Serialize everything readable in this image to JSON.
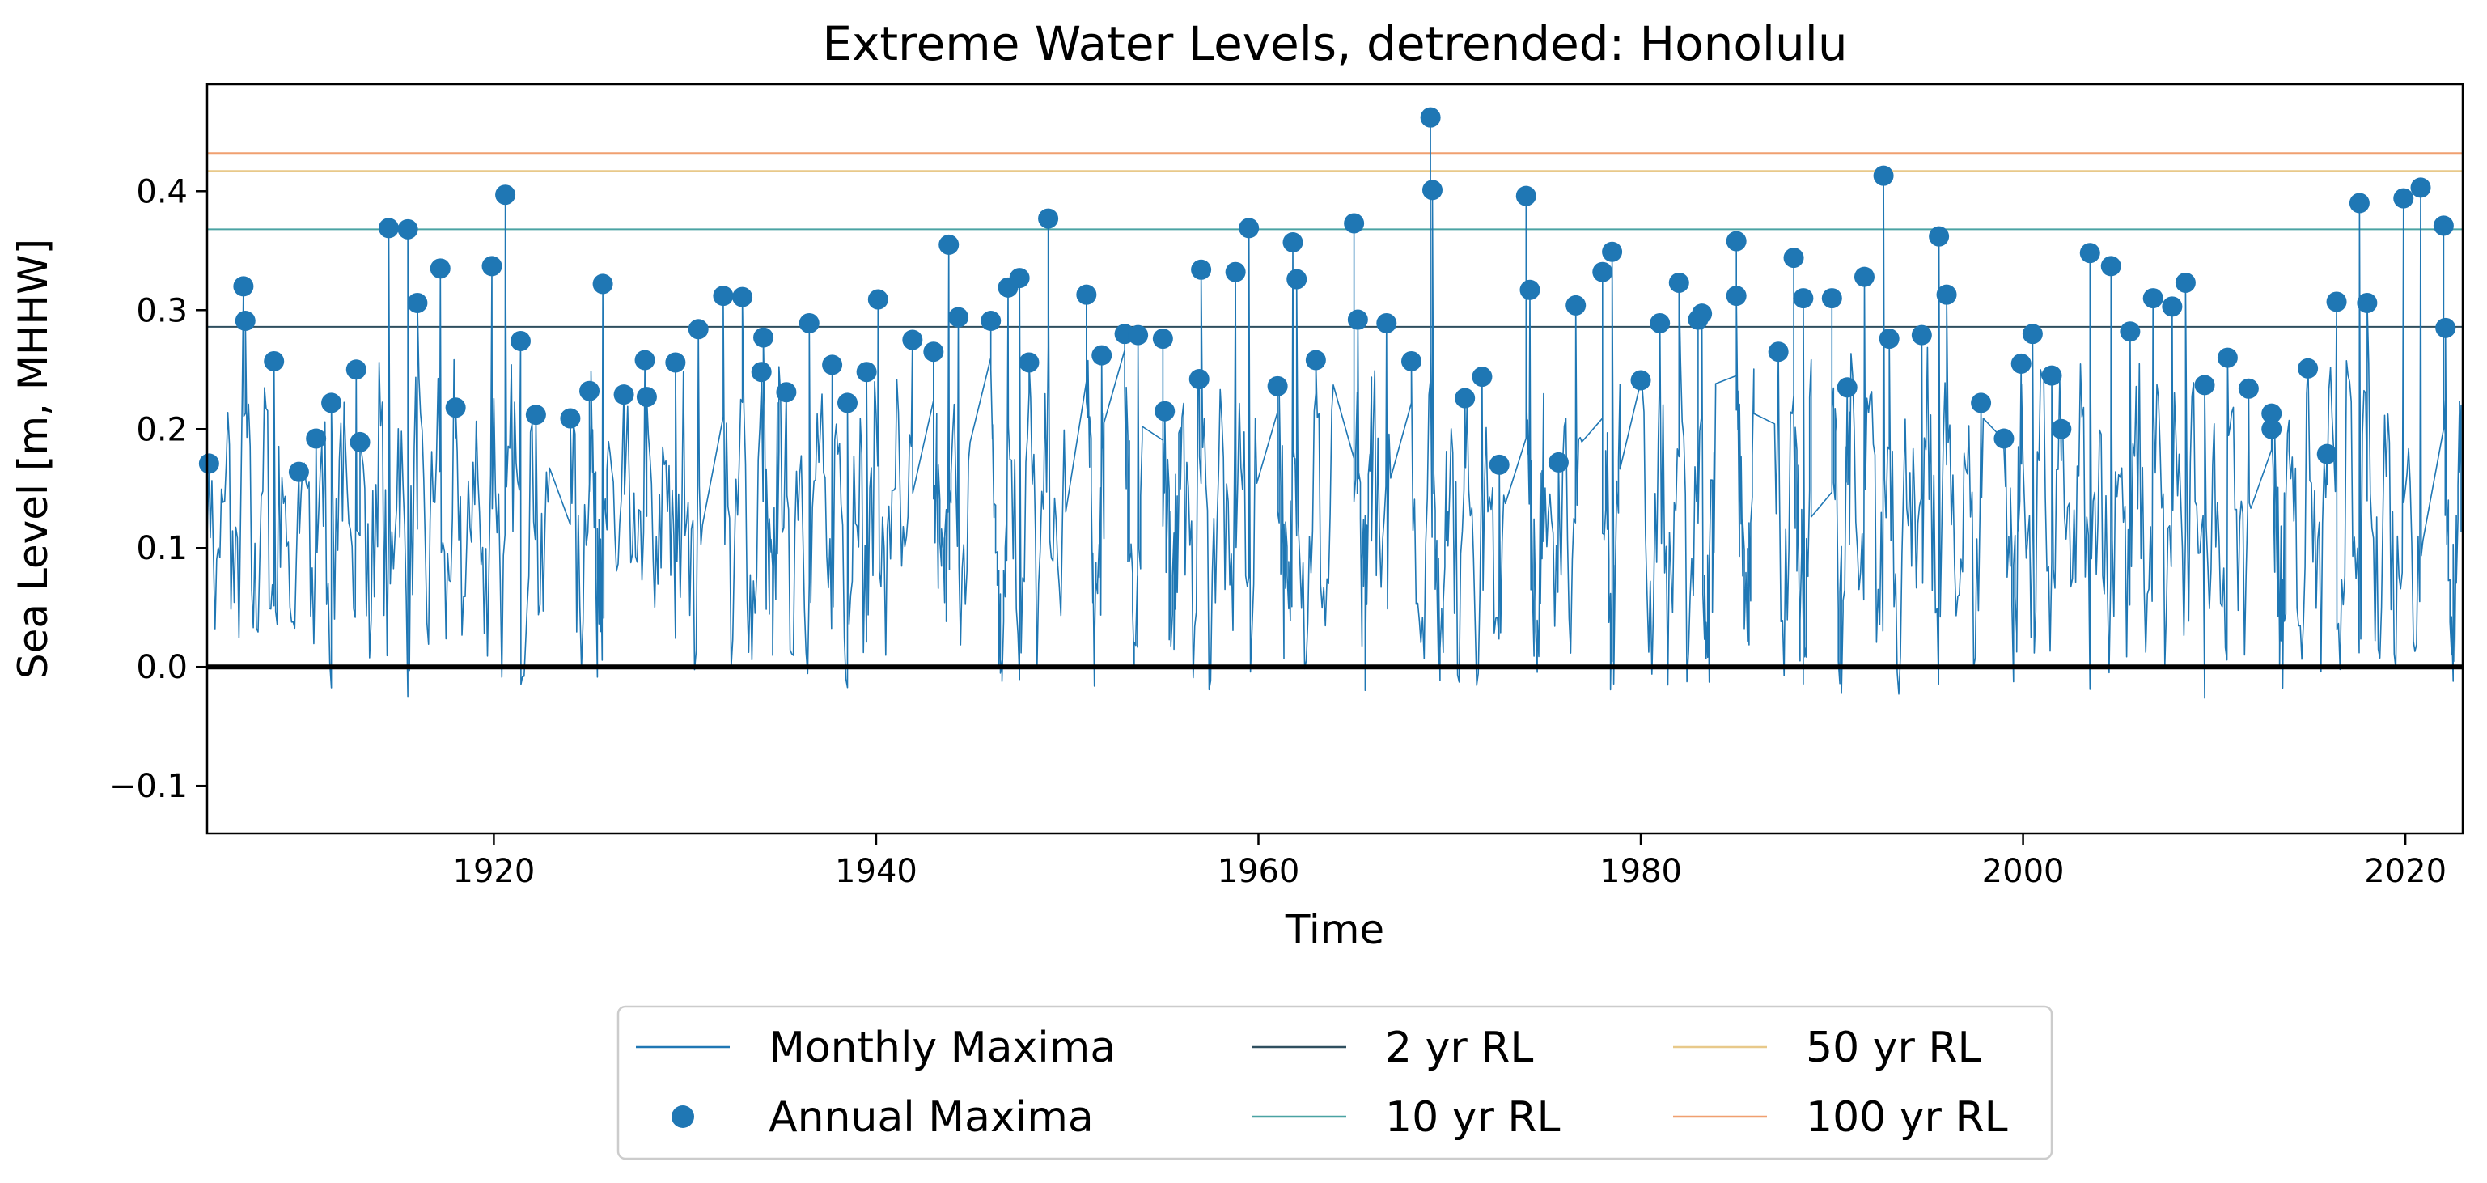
{
  "chart_data": {
    "type": "line",
    "title": "Extreme Water Levels, detrended: Honolulu",
    "xlabel": "Time",
    "ylabel": "Sea Level [m, MHHW]",
    "xlim": [
      1905,
      2023
    ],
    "ylim": [
      -0.14,
      0.49
    ],
    "x_ticks": [
      1920,
      1940,
      1960,
      1980,
      2000,
      2020
    ],
    "y_ticks": [
      -0.1,
      0.0,
      0.1,
      0.2,
      0.3,
      0.4
    ],
    "y_tick_labels": [
      "−0.1",
      "0.0",
      "0.1",
      "0.2",
      "0.3",
      "0.4"
    ],
    "x_tick_labels": [
      "1920",
      "1940",
      "1960",
      "1980",
      "2000",
      "2020"
    ],
    "grid": false,
    "legend_position": "bottom-outside",
    "colors": {
      "monthly": "#1f77b4",
      "annual": "#1f77b4",
      "rl2": "#2f4f5f",
      "rl10": "#4aa3a3",
      "rl50": "#e8c98a",
      "rl100": "#f0a070",
      "zero": "#000000"
    },
    "return_levels": [
      {
        "name": "2 yr RL",
        "value": 0.286
      },
      {
        "name": "10 yr RL",
        "value": 0.368
      },
      {
        "name": "50 yr RL",
        "value": 0.417
      },
      {
        "name": "100 yr RL",
        "value": 0.432
      }
    ],
    "series": [
      {
        "name": "Annual Maxima",
        "x": [
          1905.1,
          1906.9,
          1907.0,
          1908.5,
          1909.8,
          1910.7,
          1911.5,
          1912.8,
          1913.0,
          1914.5,
          1915.5,
          1916.0,
          1917.2,
          1918.0,
          1919.9,
          1920.6,
          1921.4,
          1922.2,
          1924.0,
          1925.0,
          1925.7,
          1926.8,
          1927.9,
          1928.0,
          1929.5,
          1930.7,
          1932.0,
          1933.0,
          1934.0,
          1934.1,
          1935.3,
          1936.5,
          1937.7,
          1938.5,
          1939.5,
          1940.1,
          1941.9,
          1943.0,
          1943.8,
          1944.3,
          1946.0,
          1946.9,
          1947.5,
          1948.0,
          1949.0,
          1951.0,
          1951.8,
          1953.0,
          1953.7,
          1955.0,
          1955.1,
          1956.9,
          1957.0,
          1958.8,
          1959.5,
          1961.0,
          1961.8,
          1962.0,
          1963.0,
          1965.0,
          1965.2,
          1966.7,
          1968.0,
          1969.0,
          1969.1,
          1970.8,
          1971.7,
          1972.6,
          1975.7,
          1974.0,
          1974.2,
          1976.6,
          1978.0,
          1978.5,
          1980.0,
          1981.0,
          1982.0,
          1983.0,
          1983.2,
          1985.0,
          1985.0,
          1987.2,
          1988.0,
          1988.5,
          1990.0,
          1990.8,
          1991.7,
          1992.7,
          1993.0,
          1994.7,
          1995.6,
          1996.0,
          1997.8,
          1999.0,
          1999.9,
          2000.5,
          2001.5,
          2002.0,
          2003.5,
          2004.6,
          2005.6,
          2006.8,
          2007.8,
          2008.5,
          2009.5,
          2010.7,
          2011.8,
          2013.0,
          2013.0,
          2014.9,
          2015.9,
          2016.4,
          2017.6,
          2018.0,
          2019.9,
          2020.8,
          2022.0,
          2022.1
        ],
        "values": [
          0.171,
          0.32,
          0.291,
          0.257,
          0.164,
          0.192,
          0.222,
          0.25,
          0.189,
          0.369,
          0.368,
          0.306,
          0.335,
          0.218,
          0.337,
          0.397,
          0.274,
          0.212,
          0.209,
          0.232,
          0.322,
          0.229,
          0.258,
          0.227,
          0.256,
          0.284,
          0.312,
          0.311,
          0.248,
          0.277,
          0.231,
          0.289,
          0.254,
          0.222,
          0.248,
          0.309,
          0.275,
          0.265,
          0.355,
          0.294,
          0.291,
          0.319,
          0.327,
          0.256,
          0.377,
          0.313,
          0.262,
          0.28,
          0.279,
          0.276,
          0.215,
          0.242,
          0.334,
          0.332,
          0.369,
          0.236,
          0.357,
          0.326,
          0.258,
          0.373,
          0.292,
          0.289,
          0.257,
          0.462,
          0.401,
          0.226,
          0.244,
          0.17,
          0.172,
          0.396,
          0.317,
          0.304,
          0.332,
          0.349,
          0.241,
          0.289,
          0.323,
          0.292,
          0.297,
          0.358,
          0.312,
          0.265,
          0.344,
          0.31,
          0.31,
          0.235,
          0.328,
          0.413,
          0.276,
          0.279,
          0.362,
          0.313,
          0.222,
          0.192,
          0.255,
          0.28,
          0.245,
          0.2,
          0.348,
          0.337,
          0.282,
          0.31,
          0.303,
          0.323,
          0.237,
          0.26,
          0.234,
          0.213,
          0.2,
          0.251,
          0.179,
          0.307,
          0.39,
          0.306,
          0.394,
          0.403,
          0.371,
          0.285
        ]
      }
    ],
    "legend": [
      {
        "label": "Monthly Maxima",
        "kind": "line",
        "colorKey": "monthly"
      },
      {
        "label": "Annual Maxima",
        "kind": "dot",
        "colorKey": "annual"
      },
      {
        "label": "2 yr RL",
        "kind": "line",
        "colorKey": "rl2"
      },
      {
        "label": "10 yr RL",
        "kind": "line",
        "colorKey": "rl10"
      },
      {
        "label": "50 yr RL",
        "kind": "line",
        "colorKey": "rl50"
      },
      {
        "label": "100 yr RL",
        "kind": "line",
        "colorKey": "rl100"
      }
    ]
  }
}
